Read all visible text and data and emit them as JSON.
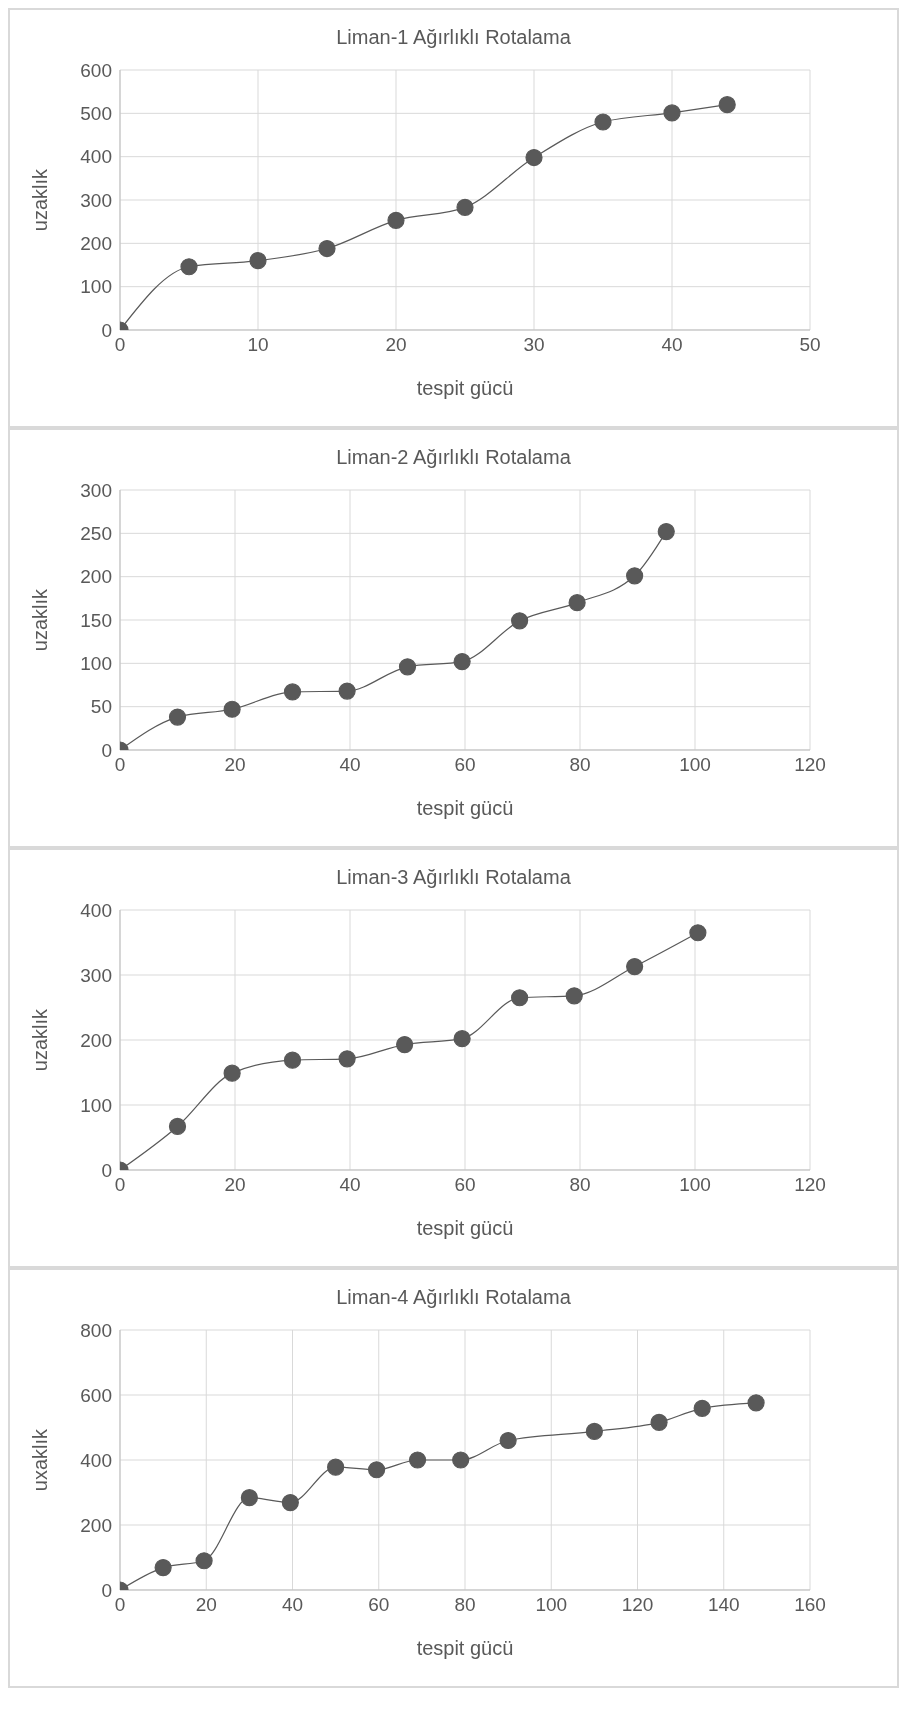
{
  "chart_data": [
    {
      "type": "line",
      "title": "Liman-1 Ağırlıklı Rotalama",
      "xlabel": "tespit gücü",
      "ylabel": "uzaklık",
      "x": [
        0,
        5,
        10,
        15,
        20,
        25,
        30,
        35,
        40,
        44
      ],
      "series": [
        {
          "color": "#595959",
          "values": [
            0,
            146,
            160,
            188,
            253,
            283,
            398,
            480,
            501,
            520
          ]
        }
      ],
      "xlim": [
        0,
        50
      ],
      "xticks": [
        0,
        10,
        20,
        30,
        40,
        50
      ],
      "ylim": [
        0,
        600
      ],
      "yticks": [
        0,
        100,
        200,
        300,
        400,
        500,
        600
      ],
      "grid": true,
      "marker": "circle",
      "line_style": "solid"
    },
    {
      "type": "line",
      "title": "Liman-2 Ağırlıklı Rotalama",
      "xlabel": "tespit gücü",
      "ylabel": "uzaklık",
      "x": [
        0,
        10,
        19.5,
        30,
        39.5,
        50,
        59.5,
        69.5,
        79.5,
        89.5,
        95
      ],
      "series": [
        {
          "color": "#595959",
          "values": [
            0,
            38,
            47,
            67,
            68,
            96,
            102,
            149,
            170,
            201,
            252
          ]
        }
      ],
      "xlim": [
        0,
        120
      ],
      "xticks": [
        0,
        20,
        40,
        60,
        80,
        100,
        120
      ],
      "ylim": [
        0,
        300
      ],
      "yticks": [
        0,
        50,
        100,
        150,
        200,
        250,
        300
      ],
      "grid": true,
      "marker": "circle",
      "line_style": "solid"
    },
    {
      "type": "line",
      "title": "Liman-3 Ağırlıklı Rotalama",
      "xlabel": "tespit gücü",
      "ylabel": "uzaklık",
      "x": [
        0,
        10,
        19.5,
        30,
        39.5,
        49.5,
        59.5,
        69.5,
        79,
        89.5,
        100.5
      ],
      "series": [
        {
          "color": "#595959",
          "values": [
            0,
            67,
            149,
            169,
            171,
            193,
            202,
            265,
            268,
            313,
            365
          ]
        }
      ],
      "xlim": [
        0,
        120
      ],
      "xticks": [
        0,
        20,
        40,
        60,
        80,
        100,
        120
      ],
      "ylim": [
        0,
        400
      ],
      "yticks": [
        0,
        100,
        200,
        300,
        400
      ],
      "grid": true,
      "marker": "circle",
      "line_style": "solid"
    },
    {
      "type": "line",
      "title": "Liman-4 Ağırlıklı Rotalama",
      "xlabel": "tespit gücü",
      "ylabel": "uxaklık",
      "x": [
        0,
        10,
        19.5,
        30,
        39.5,
        50,
        59.5,
        69,
        79,
        90,
        110,
        125,
        135,
        147.5
      ],
      "series": [
        {
          "color": "#595959",
          "values": [
            0,
            69,
            90,
            284,
            269,
            378,
            370,
            400,
            400,
            460,
            488,
            516,
            559,
            576
          ]
        }
      ],
      "xlim": [
        0,
        160
      ],
      "xticks": [
        0,
        20,
        40,
        60,
        80,
        100,
        120,
        140,
        160
      ],
      "ylim": [
        0,
        800
      ],
      "yticks": [
        0,
        200,
        400,
        600,
        800
      ],
      "grid": true,
      "marker": "circle",
      "line_style": "solid"
    }
  ]
}
